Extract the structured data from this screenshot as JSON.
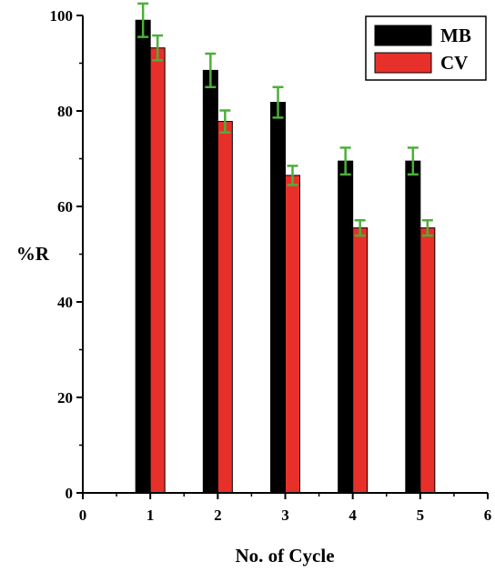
{
  "chart_data": {
    "type": "bar",
    "title": "",
    "xlabel": "No. of Cycle",
    "ylabel": "%R",
    "xlim": [
      0,
      6
    ],
    "ylim": [
      0,
      100
    ],
    "x_ticks": [
      0,
      1,
      2,
      3,
      4,
      5,
      6
    ],
    "y_ticks": [
      0,
      20,
      40,
      60,
      80,
      100
    ],
    "x": [
      1,
      2,
      3,
      4,
      5
    ],
    "grid": false,
    "legend": "top-right",
    "series": [
      {
        "name": "MB",
        "color": "#000000",
        "values": [
          99,
          88.5,
          81.8,
          69.5,
          69.5
        ],
        "errors": [
          3.5,
          3.5,
          3.2,
          2.8,
          2.8
        ]
      },
      {
        "name": "CV",
        "color": "#e8302a",
        "values": [
          93.2,
          77.8,
          66.5,
          55.5,
          55.5
        ],
        "errors": [
          2.6,
          2.3,
          2.0,
          1.6,
          1.6
        ]
      }
    ],
    "error_bar_color": "#4caf3a"
  }
}
